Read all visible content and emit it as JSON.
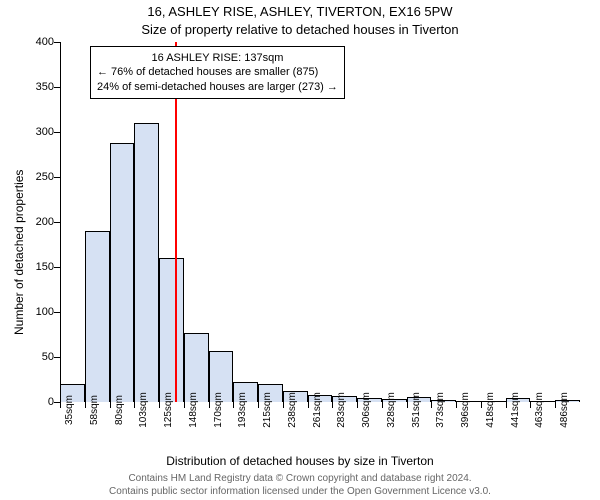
{
  "header": {
    "address_line": "16, ASHLEY RISE, ASHLEY, TIVERTON, EX16 5PW",
    "subtitle": "Size of property relative to detached houses in Tiverton"
  },
  "axis": {
    "ylabel": "Number of detached properties",
    "xlabel": "Distribution of detached houses by size in Tiverton"
  },
  "footer": {
    "line1": "Contains HM Land Registry data © Crown copyright and database right 2024.",
    "line2": "Contains public sector information licensed under the Open Government Licence v3.0."
  },
  "annotation": {
    "line1": "16 ASHLEY RISE: 137sqm",
    "line2": "← 76% of detached houses are smaller (875)",
    "line3": "24% of semi-detached houses are larger (273) →"
  },
  "chart": {
    "type": "histogram",
    "background_color": "#ffffff",
    "axis_color": "#000000",
    "ylim": [
      0,
      400
    ],
    "yticks": [
      0,
      50,
      100,
      150,
      200,
      250,
      300,
      350,
      400
    ],
    "ytick_labels": [
      "0",
      "50",
      "100",
      "150",
      "200",
      "250",
      "300",
      "350",
      "400"
    ],
    "xtick_labels": [
      "35sqm",
      "58sqm",
      "80sqm",
      "103sqm",
      "125sqm",
      "148sqm",
      "170sqm",
      "193sqm",
      "215sqm",
      "238sqm",
      "261sqm",
      "283sqm",
      "306sqm",
      "328sqm",
      "351sqm",
      "373sqm",
      "396sqm",
      "418sqm",
      "441sqm",
      "463sqm",
      "486sqm"
    ],
    "bar_fill": "#d6e1f3",
    "bar_stroke": "#000000",
    "bar_values": [
      20,
      190,
      288,
      310,
      160,
      77,
      57,
      22,
      20,
      12,
      8,
      7,
      5,
      3,
      6,
      2,
      0,
      0,
      5,
      0,
      2
    ],
    "marker_x": 137,
    "marker_color": "#ff0000",
    "xmin": 35,
    "xmax": 497,
    "title_fontsize": 13,
    "label_fontsize": 12,
    "tick_fontsize": 11
  }
}
